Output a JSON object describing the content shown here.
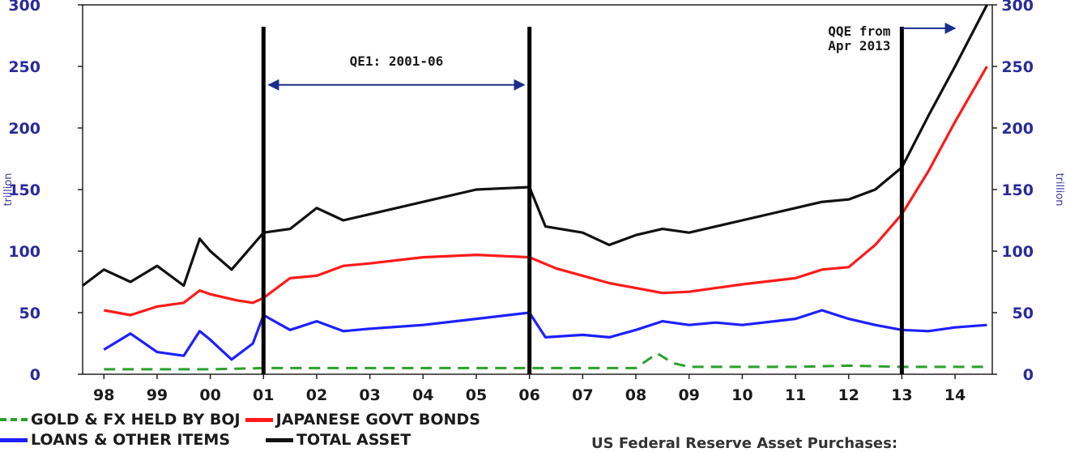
{
  "chart_data": {
    "type": "line",
    "title": "",
    "ylabel_left": "trillion",
    "ylabel_right": "trillion",
    "ylim": [
      0,
      300
    ],
    "y_ticks": [
      0,
      50,
      100,
      150,
      200,
      250,
      300
    ],
    "x_tick_labels": [
      "98",
      "99",
      "00",
      "01",
      "02",
      "03",
      "04",
      "05",
      "06",
      "07",
      "08",
      "09",
      "10",
      "11",
      "12",
      "13",
      "14"
    ],
    "x_range": [
      1997.6,
      2014.7
    ],
    "vlines": [
      2001.0,
      2006.0,
      2013.0
    ],
    "annotations": [
      {
        "text": "QE1: 2001-06",
        "arrow_from": 2001.1,
        "arrow_to": 2005.9,
        "arrow_y": 235
      },
      {
        "text": "QQE from\nApr 2013",
        "arrow_from": 2013.0,
        "arrow_to": 2014.0,
        "arrow_y": 281
      }
    ],
    "series": [
      {
        "name": "GOLD & FX HELD BY BOJ",
        "color": "#2ca02c",
        "style": "dashed",
        "x": [
          1998,
          1999,
          2000,
          2001,
          2002,
          2003,
          2004,
          2005,
          2006,
          2007,
          2008,
          2008.4,
          2008.7,
          2009,
          2010,
          2011,
          2012,
          2013,
          2014,
          2014.6
        ],
        "values": [
          4,
          4,
          4,
          5,
          5,
          5,
          5,
          5,
          5,
          5,
          5,
          17,
          9,
          6,
          6,
          6,
          7,
          6,
          6,
          6
        ]
      },
      {
        "name": "JAPANESE GOVT BONDS",
        "color": "#ff1a1a",
        "style": "solid",
        "x": [
          1998,
          1998.5,
          1999,
          1999.5,
          1999.8,
          2000,
          2000.5,
          2000.8,
          2001,
          2001.5,
          2002,
          2002.5,
          2003,
          2004,
          2005,
          2006,
          2006.5,
          2007,
          2007.5,
          2008,
          2008.5,
          2009,
          2009.5,
          2010,
          2011,
          2011.5,
          2012,
          2012.5,
          2013,
          2013.5,
          2014,
          2014.6
        ],
        "values": [
          52,
          48,
          55,
          58,
          68,
          65,
          60,
          58,
          62,
          78,
          80,
          88,
          90,
          95,
          97,
          95,
          86,
          80,
          74,
          70,
          66,
          67,
          70,
          73,
          78,
          85,
          87,
          105,
          130,
          165,
          205,
          250
        ]
      },
      {
        "name": "LOANS & OTHER ITEMS",
        "color": "#1f1fff",
        "style": "solid",
        "x": [
          1998,
          1998.5,
          1999,
          1999.5,
          1999.8,
          2000,
          2000.4,
          2000.8,
          2001,
          2001.5,
          2002,
          2002.5,
          2003,
          2004,
          2005,
          2006,
          2006.3,
          2007,
          2007.5,
          2008,
          2008.5,
          2009,
          2009.5,
          2010,
          2011,
          2011.5,
          2012,
          2012.5,
          2013,
          2013.5,
          2014,
          2014.6
        ],
        "values": [
          20,
          33,
          18,
          15,
          35,
          28,
          12,
          25,
          48,
          36,
          43,
          35,
          37,
          40,
          45,
          50,
          30,
          32,
          30,
          36,
          43,
          40,
          42,
          40,
          45,
          52,
          45,
          40,
          36,
          35,
          38,
          40
        ]
      },
      {
        "name": "TOTAL ASSET",
        "color": "#111111",
        "style": "solid",
        "x": [
          1997.6,
          1998,
          1998.5,
          1999,
          1999.5,
          1999.8,
          2000,
          2000.4,
          2000.8,
          2001,
          2001.5,
          2002,
          2002.5,
          2003,
          2004,
          2005,
          2006,
          2006.3,
          2007,
          2007.5,
          2008,
          2008.5,
          2009,
          2009.5,
          2010,
          2011,
          2011.5,
          2012,
          2012.5,
          2013,
          2013.5,
          2014,
          2014.6
        ],
        "values": [
          72,
          85,
          75,
          88,
          72,
          110,
          100,
          85,
          105,
          115,
          118,
          135,
          125,
          130,
          140,
          150,
          152,
          120,
          115,
          105,
          113,
          118,
          115,
          120,
          125,
          135,
          140,
          142,
          150,
          168,
          210,
          250,
          300
        ]
      }
    ]
  },
  "legend": {
    "items": [
      "GOLD & FX HELD BY BOJ",
      "JAPANESE GOVT BONDS",
      "LOANS & OTHER ITEMS",
      "TOTAL ASSET"
    ]
  },
  "footer": {
    "text": "US Federal Reserve Asset Purchases:"
  }
}
